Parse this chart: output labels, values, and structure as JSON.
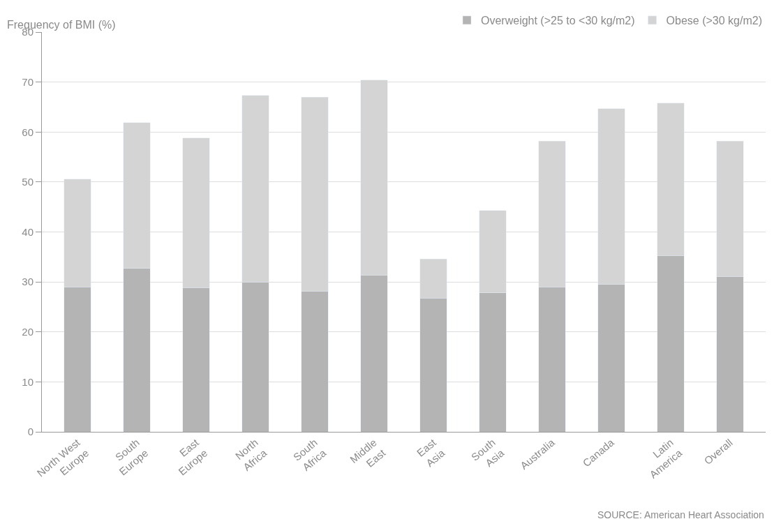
{
  "chart_data": {
    "type": "bar",
    "stacked": true,
    "ylabel": "Frequency of BMI (%)",
    "categories": [
      "North West\nEurope",
      "South\nEurope",
      "East\nEurope",
      "North\nAfrica",
      "South\nAfrica",
      "Middle\nEast",
      "East\nAsia",
      "South\nAsia",
      "Australia",
      "Canada",
      "Latin\nAmerica",
      "Overall"
    ],
    "series": [
      {
        "name": "Overweight (>25 to <30 kg/m2)",
        "color": "#b4b4b4",
        "values": [
          29.0,
          32.7,
          28.9,
          30.0,
          28.2,
          31.4,
          26.8,
          27.8,
          29.0,
          29.5,
          35.3,
          31.1
        ]
      },
      {
        "name": "Obese (>30 kg/m2)",
        "color": "#d4d4d4",
        "values": [
          21.6,
          29.2,
          29.9,
          37.3,
          38.8,
          39.0,
          7.8,
          16.5,
          29.2,
          35.2,
          30.5,
          27.1
        ]
      }
    ],
    "ylim": [
      0,
      80
    ],
    "yticks": [
      0,
      10,
      20,
      30,
      40,
      50,
      60,
      70,
      80
    ],
    "grid": "y",
    "legend": "top right",
    "annotations": [
      "SOURCE: American Heart Association"
    ]
  }
}
